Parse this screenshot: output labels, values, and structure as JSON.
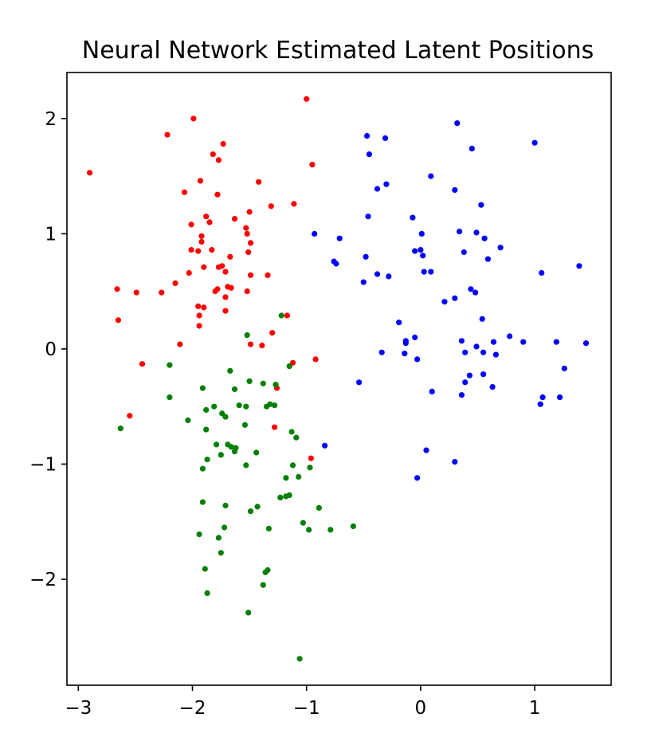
{
  "chart_data": {
    "type": "scatter",
    "title": "Neural Network Estimated Latent Positions",
    "xlabel": "",
    "ylabel": "",
    "xlim": [
      -3.1,
      1.67
    ],
    "ylim": [
      -2.92,
      2.4
    ],
    "xticks": [
      -3,
      -2,
      -1,
      0,
      1
    ],
    "xtick_labels": [
      "−3",
      "−2",
      "−1",
      "0",
      "1"
    ],
    "yticks": [
      2,
      1,
      0,
      -1,
      -2
    ],
    "ytick_labels": [
      "2",
      "1",
      "0",
      "−1",
      "−2"
    ],
    "grid": false,
    "legend": "none",
    "series": [
      {
        "color": "#ff0000",
        "points": [
          [
            -1.0,
            2.17
          ],
          [
            -2.9,
            1.53
          ],
          [
            -2.22,
            1.86
          ],
          [
            -1.99,
            2.0
          ],
          [
            -1.73,
            1.78
          ],
          [
            -1.82,
            1.69
          ],
          [
            -1.77,
            1.64
          ],
          [
            -0.95,
            1.6
          ],
          [
            -2.07,
            1.36
          ],
          [
            -1.93,
            1.46
          ],
          [
            -1.78,
            1.34
          ],
          [
            -1.42,
            1.45
          ],
          [
            -1.11,
            1.26
          ],
          [
            -1.31,
            1.24
          ],
          [
            -1.88,
            1.15
          ],
          [
            -1.5,
            1.19
          ],
          [
            -2.01,
            1.08
          ],
          [
            -1.63,
            1.13
          ],
          [
            -1.85,
            1.1
          ],
          [
            -1.53,
            1.05
          ],
          [
            -1.92,
            0.98
          ],
          [
            -1.52,
            1.0
          ],
          [
            -1.92,
            0.93
          ],
          [
            -1.49,
            0.92
          ],
          [
            -1.83,
            0.86
          ],
          [
            -2.01,
            0.86
          ],
          [
            -1.95,
            0.85
          ],
          [
            -1.51,
            0.84
          ],
          [
            -1.67,
            0.8
          ],
          [
            -1.74,
            0.72
          ],
          [
            -1.9,
            0.71
          ],
          [
            -1.77,
            0.71
          ],
          [
            -1.71,
            0.67
          ],
          [
            -2.03,
            0.66
          ],
          [
            -1.49,
            0.64
          ],
          [
            -1.34,
            0.64
          ],
          [
            -2.15,
            0.57
          ],
          [
            -1.69,
            0.54
          ],
          [
            -1.66,
            0.53
          ],
          [
            -2.66,
            0.52
          ],
          [
            -1.78,
            0.52
          ],
          [
            -1.8,
            0.5
          ],
          [
            -2.49,
            0.49
          ],
          [
            -2.27,
            0.49
          ],
          [
            -1.52,
            0.5
          ],
          [
            -1.71,
            0.45
          ],
          [
            -1.95,
            0.37
          ],
          [
            -1.9,
            0.36
          ],
          [
            -1.71,
            0.33
          ],
          [
            -1.94,
            0.29
          ],
          [
            -1.17,
            0.29
          ],
          [
            -2.65,
            0.25
          ],
          [
            -1.94,
            0.2
          ],
          [
            -1.3,
            0.14
          ],
          [
            -2.11,
            0.04
          ],
          [
            -1.49,
            0.04
          ],
          [
            -1.39,
            0.03
          ],
          [
            -0.92,
            -0.09
          ],
          [
            -1.12,
            -0.12
          ],
          [
            -2.44,
            -0.13
          ],
          [
            -1.26,
            -0.34
          ],
          [
            -2.55,
            -0.58
          ],
          [
            -1.28,
            -0.68
          ],
          [
            -0.96,
            -0.95
          ]
        ]
      },
      {
        "color": "#0000ff",
        "points": [
          [
            0.32,
            1.96
          ],
          [
            -0.47,
            1.85
          ],
          [
            -0.31,
            1.83
          ],
          [
            1.0,
            1.79
          ],
          [
            0.45,
            1.74
          ],
          [
            -0.45,
            1.69
          ],
          [
            0.09,
            1.5
          ],
          [
            -0.3,
            1.43
          ],
          [
            -0.38,
            1.39
          ],
          [
            0.3,
            1.38
          ],
          [
            0.53,
            1.25
          ],
          [
            -0.46,
            1.15
          ],
          [
            -0.07,
            1.14
          ],
          [
            0.01,
            1.0
          ],
          [
            0.34,
            1.02
          ],
          [
            0.49,
            1.01
          ],
          [
            -0.93,
            1.0
          ],
          [
            -0.71,
            0.96
          ],
          [
            0.56,
            0.96
          ],
          [
            0.7,
            0.88
          ],
          [
            0.0,
            0.86
          ],
          [
            -0.05,
            0.85
          ],
          [
            0.02,
            0.81
          ],
          [
            0.38,
            0.84
          ],
          [
            -0.48,
            0.8
          ],
          [
            0.59,
            0.78
          ],
          [
            -0.76,
            0.76
          ],
          [
            -0.74,
            0.74
          ],
          [
            1.39,
            0.72
          ],
          [
            0.03,
            0.67
          ],
          [
            0.09,
            0.67
          ],
          [
            1.06,
            0.66
          ],
          [
            -0.38,
            0.65
          ],
          [
            -0.28,
            0.63
          ],
          [
            -0.5,
            0.58
          ],
          [
            0.44,
            0.52
          ],
          [
            0.48,
            0.49
          ],
          [
            0.3,
            0.44
          ],
          [
            0.21,
            0.41
          ],
          [
            0.54,
            0.26
          ],
          [
            -0.19,
            0.23
          ],
          [
            0.78,
            0.11
          ],
          [
            -0.05,
            0.1
          ],
          [
            -0.13,
            0.07
          ],
          [
            0.36,
            0.07
          ],
          [
            -0.13,
            0.05
          ],
          [
            0.64,
            0.06
          ],
          [
            0.9,
            0.06
          ],
          [
            1.19,
            0.06
          ],
          [
            1.45,
            0.05
          ],
          [
            0.49,
            0.02
          ],
          [
            -0.34,
            -0.03
          ],
          [
            -0.14,
            -0.04
          ],
          [
            0.39,
            -0.03
          ],
          [
            0.66,
            -0.05
          ],
          [
            0.55,
            -0.03
          ],
          [
            -0.03,
            -0.09
          ],
          [
            1.26,
            -0.17
          ],
          [
            0.43,
            -0.23
          ],
          [
            0.55,
            -0.22
          ],
          [
            -0.54,
            -0.29
          ],
          [
            0.39,
            -0.29
          ],
          [
            0.63,
            -0.33
          ],
          [
            0.1,
            -0.37
          ],
          [
            0.36,
            -0.4
          ],
          [
            1.07,
            -0.42
          ],
          [
            1.22,
            -0.42
          ],
          [
            1.05,
            -0.48
          ],
          [
            -0.84,
            -0.84
          ],
          [
            0.05,
            -0.88
          ],
          [
            0.3,
            -0.98
          ],
          [
            -0.03,
            -1.12
          ]
        ]
      },
      {
        "color": "#008000",
        "points": [
          [
            -1.22,
            0.29
          ],
          [
            -1.52,
            0.12
          ],
          [
            -2.2,
            -0.14
          ],
          [
            -1.15,
            -0.15
          ],
          [
            -1.67,
            -0.19
          ],
          [
            -1.5,
            -0.28
          ],
          [
            -1.38,
            -0.3
          ],
          [
            -1.27,
            -0.31
          ],
          [
            -1.91,
            -0.34
          ],
          [
            -1.63,
            -0.35
          ],
          [
            -2.2,
            -0.42
          ],
          [
            -1.32,
            -0.48
          ],
          [
            -1.28,
            -0.49
          ],
          [
            -1.35,
            -0.5
          ],
          [
            -1.59,
            -0.49
          ],
          [
            -1.53,
            -0.5
          ],
          [
            -1.81,
            -0.5
          ],
          [
            -1.88,
            -0.53
          ],
          [
            -1.74,
            -0.56
          ],
          [
            -1.71,
            -0.59
          ],
          [
            -2.04,
            -0.62
          ],
          [
            -1.54,
            -0.66
          ],
          [
            -2.63,
            -0.69
          ],
          [
            -1.88,
            -0.7
          ],
          [
            -1.13,
            -0.72
          ],
          [
            -1.09,
            -0.77
          ],
          [
            -1.69,
            -0.83
          ],
          [
            -1.79,
            -0.83
          ],
          [
            -1.66,
            -0.85
          ],
          [
            -1.62,
            -0.86
          ],
          [
            -1.63,
            -0.89
          ],
          [
            -1.44,
            -0.9
          ],
          [
            -1.75,
            -0.92
          ],
          [
            -1.87,
            -0.96
          ],
          [
            -1.53,
            -1.01
          ],
          [
            -1.12,
            -1.01
          ],
          [
            -1.91,
            -1.04
          ],
          [
            -0.97,
            -1.03
          ],
          [
            -1.07,
            -1.11
          ],
          [
            -1.18,
            -1.12
          ],
          [
            -1.15,
            -1.27
          ],
          [
            -1.18,
            -1.28
          ],
          [
            -1.23,
            -1.29
          ],
          [
            -1.91,
            -1.33
          ],
          [
            -0.89,
            -1.38
          ],
          [
            -1.71,
            -1.36
          ],
          [
            -1.43,
            -1.37
          ],
          [
            -1.49,
            -1.41
          ],
          [
            -1.03,
            -1.51
          ],
          [
            -1.72,
            -1.55
          ],
          [
            -0.59,
            -1.54
          ],
          [
            -1.33,
            -1.56
          ],
          [
            -0.98,
            -1.57
          ],
          [
            -0.79,
            -1.57
          ],
          [
            -1.94,
            -1.61
          ],
          [
            -1.77,
            -1.64
          ],
          [
            -1.75,
            -1.77
          ],
          [
            -1.89,
            -1.91
          ],
          [
            -1.34,
            -1.92
          ],
          [
            -1.36,
            -1.94
          ],
          [
            -1.38,
            -2.05
          ],
          [
            -1.87,
            -2.12
          ],
          [
            -1.51,
            -2.29
          ],
          [
            -1.06,
            -2.69
          ]
        ]
      }
    ]
  }
}
